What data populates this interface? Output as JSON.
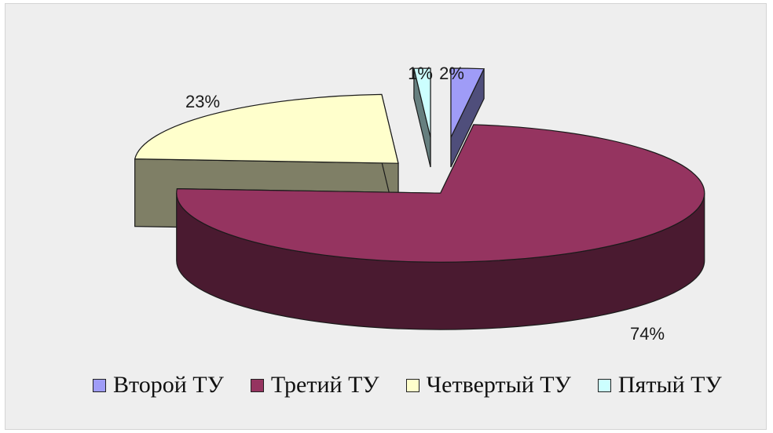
{
  "chart_data": {
    "type": "pie",
    "style": "3d-exploded",
    "title": "",
    "labels": [
      "Второй ТУ",
      "Третий ТУ",
      "Четвертый ТУ",
      "Пятый ТУ"
    ],
    "values": [
      2,
      74,
      23,
      1
    ],
    "data_labels": [
      "2%",
      "74%",
      "23%",
      "1%"
    ],
    "colors": [
      "#9f9cf7",
      "#953460",
      "#ffffcc",
      "#ccffff"
    ],
    "side_colors": [
      "#4f4e7b",
      "#4a1a30",
      "#7f7f66",
      "#667f7f"
    ],
    "legend": {
      "position": "bottom"
    }
  }
}
